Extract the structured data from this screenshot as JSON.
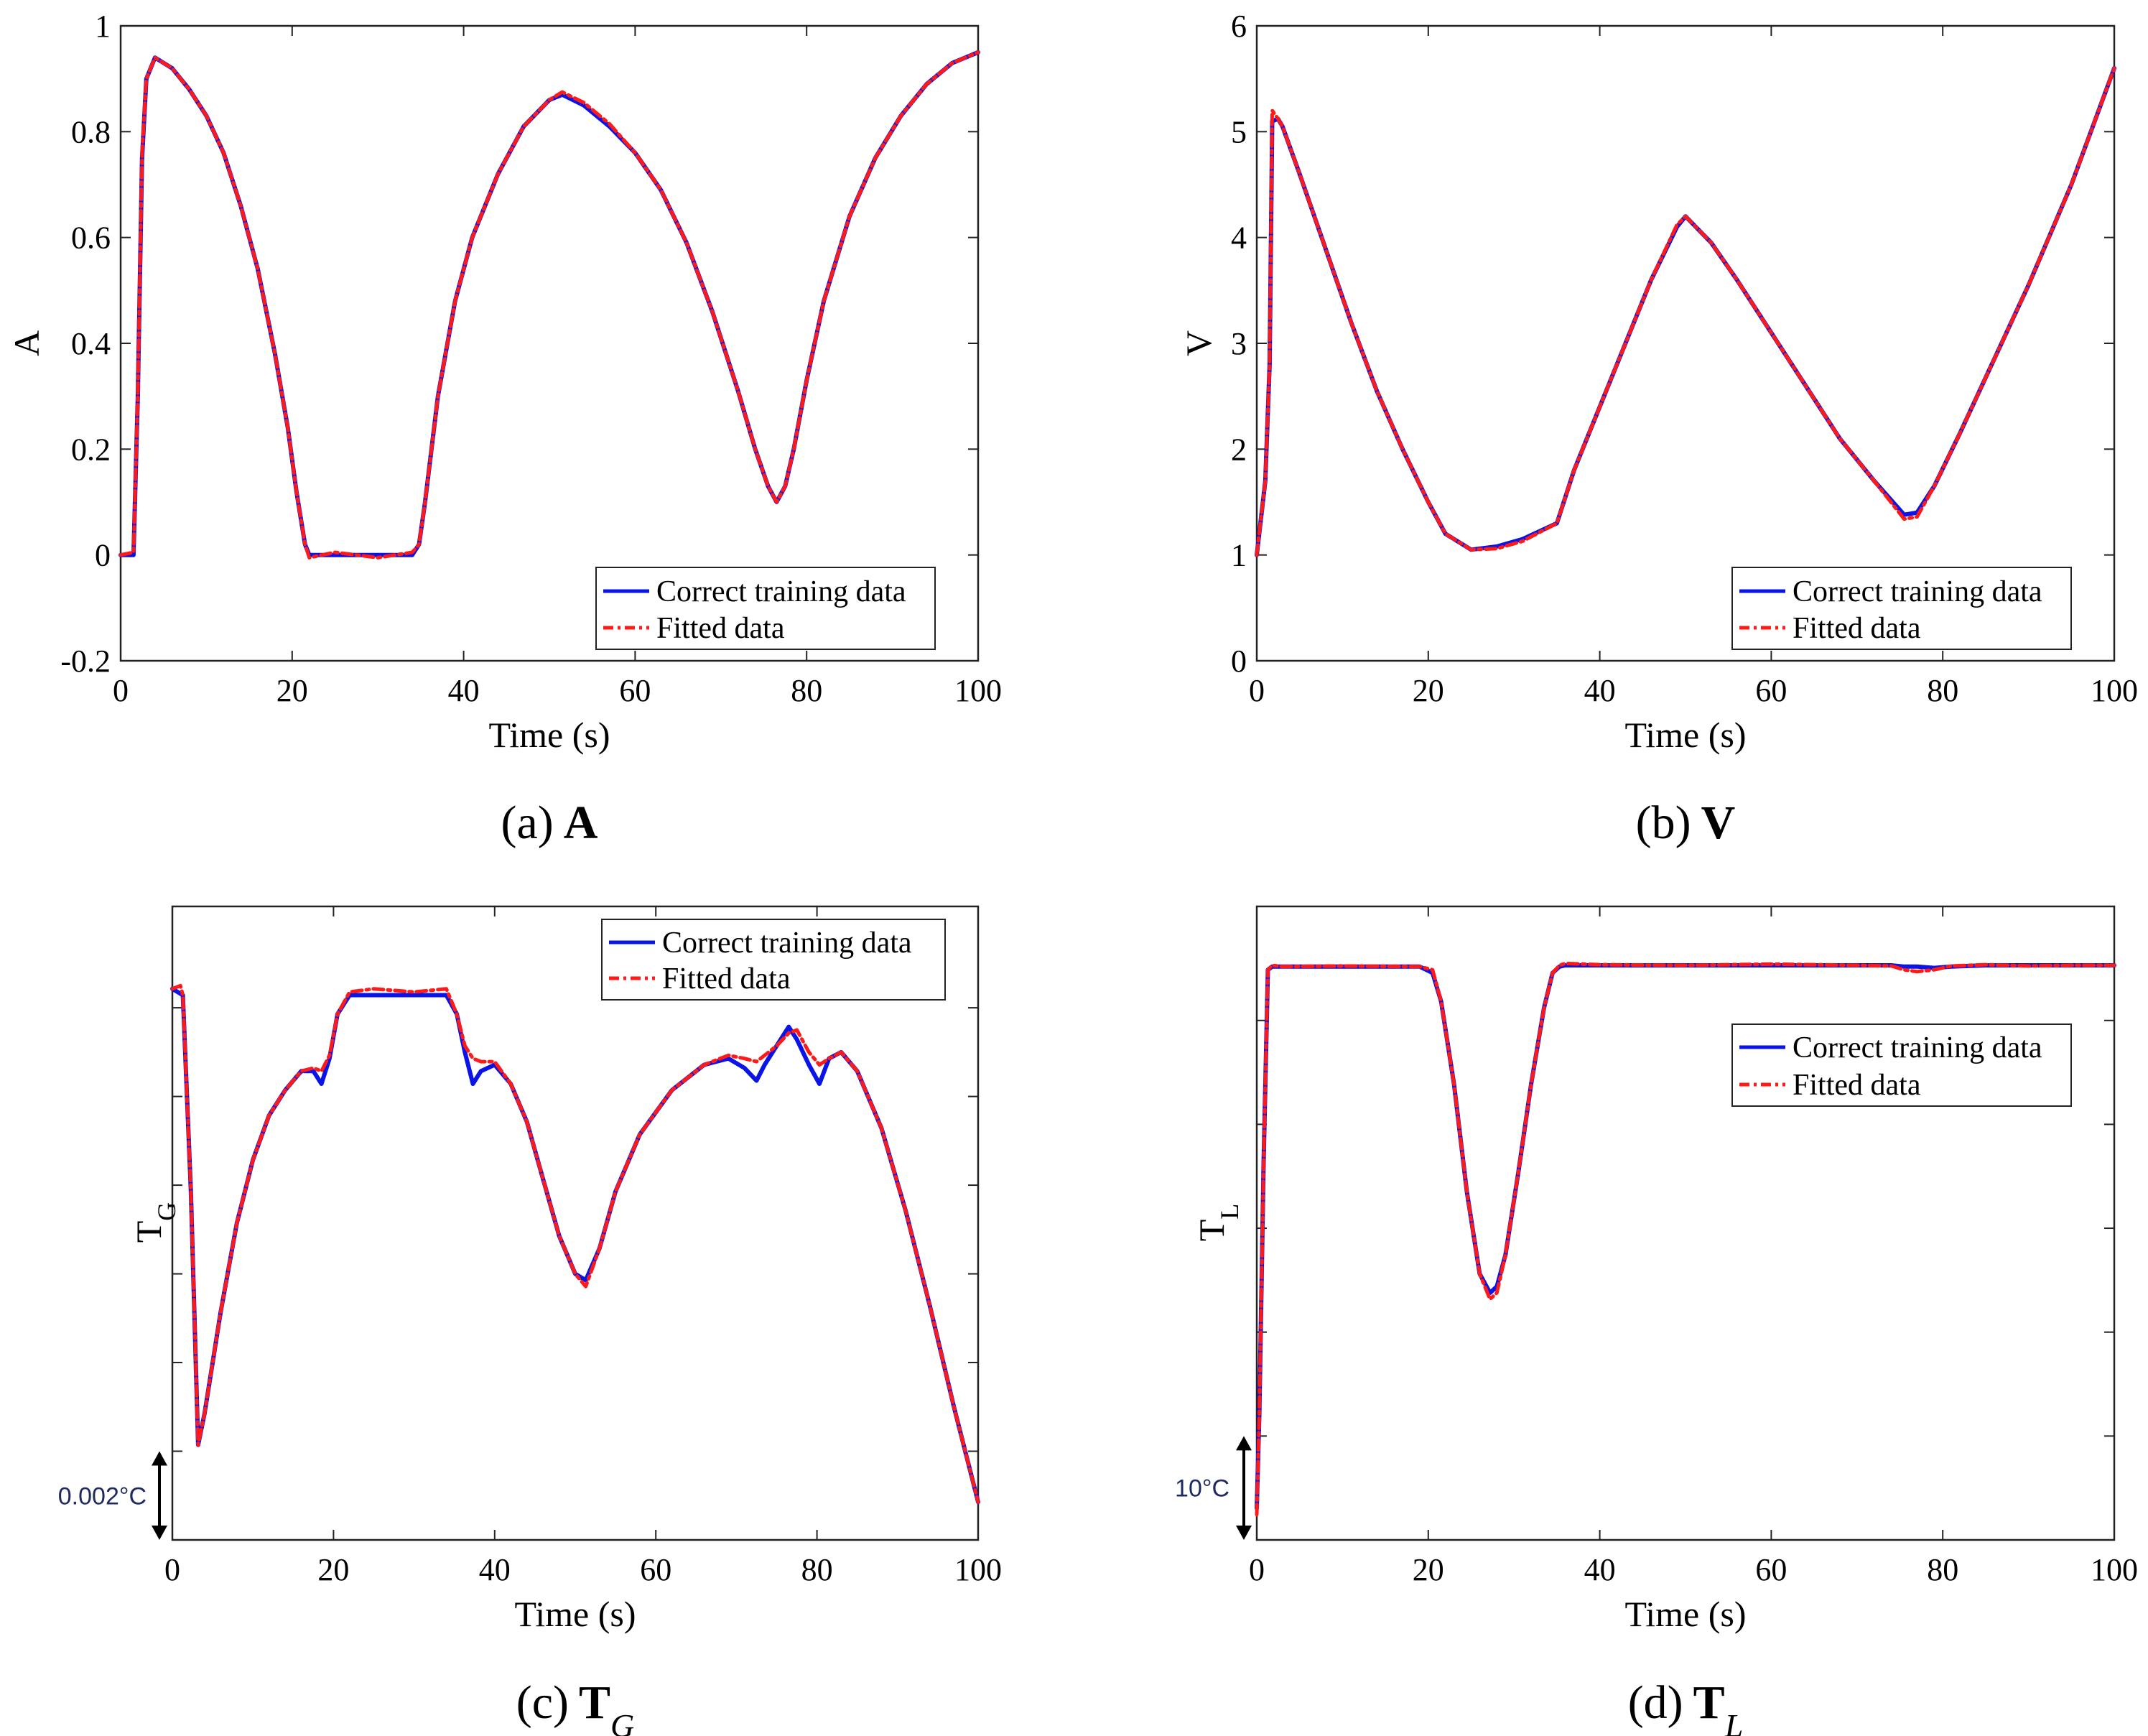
{
  "figure": {
    "legend": {
      "correct": "Correct training data",
      "fitted": "Fitted data"
    },
    "colors": {
      "correct": "#0a14e6",
      "fitted": "#ff1a1a",
      "axis": "#222222"
    }
  },
  "chart_data": [
    {
      "id": "a",
      "type": "line",
      "caption_tag": "(a)",
      "caption_var": "A",
      "caption_sub": "",
      "xlabel": "Time (s)",
      "ylabel": "A",
      "ylabel_sub": "",
      "xlim": [
        0,
        100
      ],
      "ylim": [
        -0.2,
        1
      ],
      "xticks": [
        0,
        20,
        40,
        60,
        80,
        100
      ],
      "xtick_labels": [
        "0",
        "20",
        "40",
        "60",
        "80",
        "100"
      ],
      "yticks": [
        -0.2,
        0,
        0.2,
        0.4,
        0.6,
        0.8,
        1
      ],
      "ytick_labels": [
        "-0.2",
        "0",
        "0.2",
        "0.4",
        "0.6",
        "0.8",
        "1"
      ],
      "legend_position": "bottom-right",
      "series": [
        {
          "name": "Correct training data",
          "style": "solid",
          "x": [
            0,
            1.5,
            2,
            2.5,
            3,
            4,
            6,
            8,
            10,
            12,
            14,
            16,
            18,
            19.5,
            20.5,
            21.5,
            22,
            25,
            30,
            34,
            34.8,
            35.5,
            37,
            39,
            41,
            44,
            47,
            50,
            51.5,
            54,
            57,
            60,
            63,
            66,
            69,
            72,
            74,
            75.5,
            76.5,
            77.5,
            78.5,
            80,
            82,
            85,
            88,
            91,
            94,
            97,
            100
          ],
          "y": [
            0,
            0,
            0.3,
            0.75,
            0.9,
            0.94,
            0.92,
            0.88,
            0.83,
            0.76,
            0.66,
            0.54,
            0.38,
            0.24,
            0.12,
            0.02,
            0,
            0,
            0,
            0,
            0.02,
            0.1,
            0.3,
            0.48,
            0.6,
            0.72,
            0.81,
            0.86,
            0.87,
            0.85,
            0.81,
            0.76,
            0.69,
            0.59,
            0.46,
            0.31,
            0.2,
            0.13,
            0.1,
            0.13,
            0.2,
            0.33,
            0.48,
            0.64,
            0.75,
            0.83,
            0.89,
            0.93,
            0.95
          ]
        },
        {
          "name": "Fitted data",
          "style": "dashdot",
          "x": [
            0,
            1.5,
            2,
            2.5,
            3,
            4,
            6,
            8,
            10,
            12,
            14,
            16,
            18,
            19.5,
            20.5,
            21.5,
            22,
            25,
            30,
            34,
            34.8,
            35.5,
            37,
            39,
            41,
            44,
            47,
            50,
            51.5,
            54,
            57,
            60,
            63,
            66,
            69,
            72,
            74,
            75.5,
            76.5,
            77.5,
            78.5,
            80,
            82,
            85,
            88,
            91,
            94,
            97,
            100
          ],
          "y": [
            0,
            0.005,
            0.3,
            0.76,
            0.9,
            0.94,
            0.92,
            0.88,
            0.83,
            0.76,
            0.66,
            0.54,
            0.38,
            0.24,
            0.12,
            0.02,
            -0.005,
            0.005,
            -0.005,
            0.005,
            0.02,
            0.1,
            0.3,
            0.48,
            0.6,
            0.72,
            0.81,
            0.86,
            0.875,
            0.855,
            0.815,
            0.76,
            0.69,
            0.59,
            0.46,
            0.31,
            0.2,
            0.13,
            0.1,
            0.13,
            0.2,
            0.33,
            0.48,
            0.64,
            0.75,
            0.83,
            0.89,
            0.93,
            0.95
          ]
        }
      ]
    },
    {
      "id": "b",
      "type": "line",
      "caption_tag": "(b)",
      "caption_var": "V",
      "caption_sub": "",
      "xlabel": "Time (s)",
      "ylabel": "V",
      "ylabel_sub": "",
      "xlim": [
        0,
        100
      ],
      "ylim": [
        0,
        6
      ],
      "xticks": [
        0,
        20,
        40,
        60,
        80,
        100
      ],
      "xtick_labels": [
        "0",
        "20",
        "40",
        "60",
        "80",
        "100"
      ],
      "yticks": [
        0,
        1,
        2,
        3,
        4,
        5,
        6
      ],
      "ytick_labels": [
        "0",
        "1",
        "2",
        "3",
        "4",
        "5",
        "6"
      ],
      "legend_position": "bottom-right",
      "series": [
        {
          "name": "Correct training data",
          "style": "solid",
          "x": [
            0,
            1,
            1.5,
            1.8,
            2.5,
            3,
            5,
            8,
            11,
            14,
            17,
            20,
            22,
            25,
            28,
            31,
            35,
            37,
            40,
            43,
            46,
            49,
            50,
            53,
            56,
            60,
            64,
            68,
            72,
            75.5,
            77,
            79,
            82,
            86,
            90,
            95,
            100
          ],
          "y": [
            1,
            1.7,
            2.8,
            5.1,
            5.12,
            5.05,
            4.6,
            3.9,
            3.2,
            2.55,
            2,
            1.5,
            1.2,
            1.05,
            1.08,
            1.15,
            1.3,
            1.8,
            2.4,
            3,
            3.6,
            4.1,
            4.2,
            3.95,
            3.6,
            3.1,
            2.6,
            2.1,
            1.7,
            1.38,
            1.4,
            1.65,
            2.15,
            2.85,
            3.55,
            4.5,
            5.6
          ]
        },
        {
          "name": "Fitted data",
          "style": "dashdot",
          "x": [
            0,
            1,
            1.5,
            1.8,
            2.5,
            3,
            5,
            8,
            11,
            14,
            17,
            20,
            22,
            25,
            28,
            31,
            35,
            37,
            40,
            43,
            46,
            49,
            50,
            53,
            56,
            60,
            64,
            68,
            72,
            75.5,
            77,
            79,
            82,
            86,
            90,
            95,
            100
          ],
          "y": [
            1,
            1.7,
            2.8,
            5.2,
            5.12,
            5.05,
            4.6,
            3.9,
            3.2,
            2.55,
            2,
            1.5,
            1.2,
            1.05,
            1.06,
            1.13,
            1.3,
            1.8,
            2.4,
            3,
            3.6,
            4.12,
            4.2,
            3.95,
            3.6,
            3.1,
            2.6,
            2.1,
            1.7,
            1.34,
            1.36,
            1.65,
            2.15,
            2.85,
            3.55,
            4.5,
            5.6
          ]
        }
      ]
    },
    {
      "id": "c",
      "type": "line",
      "caption_tag": "(c)",
      "caption_var": "T",
      "caption_sub": "G",
      "xlabel": "Time (s)",
      "ylabel": "T",
      "ylabel_sub": "G",
      "xlim": [
        0,
        100
      ],
      "ylim": [
        0,
        1
      ],
      "xticks": [
        0,
        20,
        40,
        60,
        80,
        100
      ],
      "xtick_labels": [
        "0",
        "20",
        "40",
        "60",
        "80",
        "100"
      ],
      "yticks": [
        0,
        0.14,
        0.28,
        0.42,
        0.56,
        0.7,
        0.84
      ],
      "ytick_labels": [],
      "scale_bar": {
        "label": "0.002°C",
        "y_from": 0,
        "y_to": 0.14
      },
      "legend_position": "top-right",
      "series": [
        {
          "name": "Correct training data",
          "style": "solid",
          "x": [
            0,
            1.3,
            2.3,
            3.2,
            4,
            6,
            8,
            10,
            12,
            14,
            16,
            17.5,
            18.5,
            19.5,
            20.5,
            22,
            25,
            30,
            34,
            35.3,
            36.3,
            37.3,
            38.3,
            40,
            42,
            44,
            46,
            48,
            50,
            51.3,
            53,
            55,
            58,
            62,
            66,
            69,
            71,
            72.5,
            73.5,
            75,
            76.5,
            77.5,
            79,
            80.3,
            81.5,
            83,
            85,
            88,
            91,
            94,
            97,
            100
          ],
          "y": [
            0.87,
            0.86,
            0.55,
            0.15,
            0.2,
            0.36,
            0.5,
            0.6,
            0.67,
            0.71,
            0.74,
            0.74,
            0.72,
            0.76,
            0.83,
            0.86,
            0.86,
            0.86,
            0.86,
            0.83,
            0.77,
            0.72,
            0.74,
            0.75,
            0.72,
            0.66,
            0.57,
            0.48,
            0.42,
            0.41,
            0.46,
            0.55,
            0.64,
            0.71,
            0.75,
            0.76,
            0.745,
            0.725,
            0.75,
            0.78,
            0.81,
            0.79,
            0.75,
            0.72,
            0.76,
            0.77,
            0.74,
            0.65,
            0.52,
            0.37,
            0.21,
            0.06
          ]
        },
        {
          "name": "Fitted data",
          "style": "dashdot",
          "x": [
            0,
            1,
            1.3,
            2.3,
            3.2,
            4,
            6,
            8,
            10,
            12,
            14,
            16,
            17.5,
            18.5,
            19.5,
            20.5,
            22,
            25,
            30,
            34,
            35.3,
            36.3,
            37.3,
            38.3,
            40,
            42,
            44,
            46,
            48,
            50,
            51.3,
            53,
            55,
            58,
            62,
            66,
            69,
            71,
            72.5,
            73.5,
            75,
            76.5,
            77.5,
            79,
            80.3,
            81.5,
            83,
            85,
            88,
            91,
            94,
            97,
            100
          ],
          "y": [
            0.87,
            0.875,
            0.86,
            0.55,
            0.15,
            0.2,
            0.36,
            0.5,
            0.6,
            0.67,
            0.71,
            0.74,
            0.745,
            0.74,
            0.765,
            0.83,
            0.865,
            0.87,
            0.865,
            0.87,
            0.83,
            0.78,
            0.76,
            0.755,
            0.755,
            0.72,
            0.66,
            0.57,
            0.48,
            0.42,
            0.4,
            0.46,
            0.55,
            0.64,
            0.71,
            0.75,
            0.765,
            0.76,
            0.755,
            0.765,
            0.78,
            0.8,
            0.805,
            0.77,
            0.75,
            0.76,
            0.77,
            0.74,
            0.65,
            0.52,
            0.37,
            0.21,
            0.06
          ]
        }
      ]
    },
    {
      "id": "d",
      "type": "line",
      "caption_tag": "(d)",
      "caption_var": "T",
      "caption_sub": "L",
      "xlabel": "Time (s)",
      "ylabel": "T",
      "ylabel_sub": "L",
      "xlim": [
        0,
        100
      ],
      "ylim": [
        0,
        1
      ],
      "xticks": [
        0,
        20,
        40,
        60,
        80,
        100
      ],
      "xtick_labels": [
        "0",
        "20",
        "40",
        "60",
        "80",
        "100"
      ],
      "yticks": [
        0,
        0.164,
        0.328,
        0.492,
        0.656,
        0.82
      ],
      "ytick_labels": [],
      "scale_bar": {
        "label": "10°C",
        "y_from": 0,
        "y_to": 0.164
      },
      "legend_position": "upper-right",
      "series": [
        {
          "name": "Correct training data",
          "style": "solid",
          "x": [
            0,
            0.3,
            0.8,
            1.3,
            1.8,
            3,
            10,
            19,
            20.5,
            21.5,
            23,
            24.5,
            26,
            27.2,
            28,
            29,
            30.5,
            32,
            33.5,
            34.5,
            35.3,
            36,
            40,
            50,
            60,
            70,
            74,
            75.5,
            77,
            79,
            81,
            85,
            90,
            95,
            100
          ],
          "y": [
            0.05,
            0.2,
            0.6,
            0.9,
            0.905,
            0.905,
            0.905,
            0.905,
            0.895,
            0.85,
            0.72,
            0.55,
            0.42,
            0.39,
            0.4,
            0.45,
            0.58,
            0.72,
            0.84,
            0.895,
            0.905,
            0.907,
            0.907,
            0.907,
            0.907,
            0.907,
            0.907,
            0.905,
            0.905,
            0.903,
            0.905,
            0.907,
            0.907,
            0.907,
            0.907
          ]
        },
        {
          "name": "Fitted data",
          "style": "dashdot",
          "x": [
            0,
            0.3,
            0.8,
            1.3,
            1.8,
            3,
            10,
            19,
            20.5,
            21.5,
            23,
            24.5,
            26,
            27.2,
            28,
            29,
            30.5,
            32,
            33.5,
            34.5,
            35.3,
            36,
            40,
            50,
            60,
            70,
            74,
            75.5,
            77,
            79,
            81,
            85,
            90,
            95,
            100
          ],
          "y": [
            0.04,
            0.2,
            0.6,
            0.9,
            0.907,
            0.905,
            0.906,
            0.905,
            0.9,
            0.85,
            0.72,
            0.55,
            0.42,
            0.38,
            0.39,
            0.45,
            0.58,
            0.72,
            0.84,
            0.895,
            0.907,
            0.91,
            0.908,
            0.907,
            0.909,
            0.907,
            0.906,
            0.9,
            0.897,
            0.9,
            0.906,
            0.908,
            0.906,
            0.907,
            0.907
          ]
        }
      ]
    }
  ]
}
